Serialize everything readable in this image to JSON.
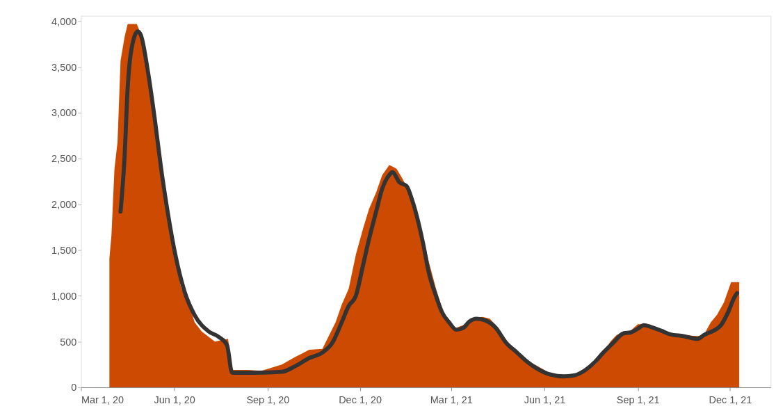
{
  "chart_data": {
    "type": "area",
    "xlim": [
      "2020-03-01",
      "2022-01-10"
    ],
    "ylim": [
      0,
      4060
    ],
    "xticks": [
      {
        "value": "2020-03-01",
        "label": "Mar 1, 20"
      },
      {
        "value": "2020-06-01",
        "label": "Jun 1, 20"
      },
      {
        "value": "2020-09-01",
        "label": "Sep 1, 20"
      },
      {
        "value": "2020-12-01",
        "label": "Dec 1, 20"
      },
      {
        "value": "2021-03-01",
        "label": "Mar 1, 21"
      },
      {
        "value": "2021-06-01",
        "label": "Jun 1, 21"
      },
      {
        "value": "2021-09-01",
        "label": "Sep 1, 21"
      },
      {
        "value": "2021-12-01",
        "label": "Dec 1, 21"
      }
    ],
    "yticks": [
      0,
      {
        "value": 500,
        "label": "500"
      },
      {
        "value": 1000,
        "label": "1,000"
      },
      {
        "value": 1500,
        "label": "1,500"
      },
      {
        "value": 2000,
        "label": "2,000"
      },
      {
        "value": 2500,
        "label": "2,500"
      },
      {
        "value": 3000,
        "label": "3,000"
      },
      {
        "value": 3500,
        "label": "3,500"
      },
      {
        "value": 4000,
        "label": "4,000"
      }
    ],
    "grid": false,
    "series": [
      {
        "color": "#cc4a02",
        "x": [
          "2020-03-29",
          "2020-03-31",
          "2020-04-03",
          "2020-04-06",
          "2020-04-09",
          "2020-04-13",
          "2020-04-16",
          "2020-04-25",
          "2020-04-29",
          "2020-05-06",
          "2020-05-13",
          "2020-05-19",
          "2020-05-26",
          "2020-06-02",
          "2020-06-08",
          "2020-06-15",
          "2020-06-21",
          "2020-06-28",
          "2020-07-11",
          "2020-07-24",
          "2020-07-28",
          "2020-08-13",
          "2020-08-26",
          "2020-09-15",
          "2020-09-28",
          "2020-10-12",
          "2020-10-25",
          "2020-11-07",
          "2020-11-13",
          "2020-11-20",
          "2020-11-27",
          "2020-12-04",
          "2020-12-10",
          "2020-12-17",
          "2020-12-23",
          "2020-12-30",
          "2021-01-06",
          "2021-01-12",
          "2021-01-19",
          "2021-01-25",
          "2021-02-01",
          "2021-02-07",
          "2021-02-14",
          "2021-02-20",
          "2021-02-27",
          "2021-03-06",
          "2021-03-13",
          "2021-03-19",
          "2021-03-26",
          "2021-04-01",
          "2021-04-08",
          "2021-04-14",
          "2021-04-21",
          "2021-04-28",
          "2021-05-11",
          "2021-05-24",
          "2021-06-07",
          "2021-06-20",
          "2021-07-03",
          "2021-07-16",
          "2021-07-23",
          "2021-07-29",
          "2021-08-05",
          "2021-08-11",
          "2021-08-18",
          "2021-08-25",
          "2021-09-01",
          "2021-09-07",
          "2021-09-14",
          "2021-09-20",
          "2021-10-03",
          "2021-10-16",
          "2021-10-30",
          "2021-11-05",
          "2021-11-12",
          "2021-11-18",
          "2021-11-25",
          "2021-12-02",
          "2021-12-10"
        ],
        "values": [
          1410,
          1660,
          2390,
          2680,
          3570,
          3830,
          3970,
          3970,
          3860,
          3350,
          2830,
          2320,
          1810,
          1370,
          1080,
          930,
          710,
          610,
          500,
          530,
          190,
          190,
          180,
          250,
          330,
          410,
          420,
          710,
          900,
          1080,
          1450,
          1730,
          1950,
          2130,
          2320,
          2430,
          2390,
          2280,
          2130,
          1950,
          1660,
          1370,
          1080,
          860,
          710,
          650,
          680,
          710,
          760,
          770,
          750,
          680,
          570,
          460,
          310,
          240,
          150,
          110,
          130,
          210,
          270,
          380,
          500,
          570,
          610,
          620,
          690,
          690,
          660,
          630,
          590,
          570,
          560,
          570,
          710,
          790,
          930,
          1150,
          1150
        ]
      },
      {
        "type": "line",
        "color": "#333333",
        "x": [
          "2020-04-09",
          "2020-04-13",
          "2020-04-16",
          "2020-04-20",
          "2020-04-26",
          "2020-04-29",
          "2020-05-06",
          "2020-05-13",
          "2020-05-19",
          "2020-05-26",
          "2020-06-02",
          "2020-06-11",
          "2020-06-21",
          "2020-07-05",
          "2020-07-15",
          "2020-07-23",
          "2020-07-28",
          "2020-08-20",
          "2020-09-15",
          "2020-09-28",
          "2020-10-12",
          "2020-10-25",
          "2020-11-04",
          "2020-11-13",
          "2020-11-20",
          "2020-11-27",
          "2020-12-04",
          "2020-12-10",
          "2020-12-17",
          "2020-12-23",
          "2020-12-30",
          "2021-01-02",
          "2021-01-09",
          "2021-01-16",
          "2021-01-22",
          "2021-02-01",
          "2021-02-07",
          "2021-02-14",
          "2021-02-20",
          "2021-02-27",
          "2021-03-06",
          "2021-03-13",
          "2021-03-19",
          "2021-03-26",
          "2021-04-04",
          "2021-04-14",
          "2021-04-24",
          "2021-05-05",
          "2021-05-15",
          "2021-05-24",
          "2021-06-07",
          "2021-06-20",
          "2021-06-30",
          "2021-07-10",
          "2021-07-20",
          "2021-07-29",
          "2021-08-08",
          "2021-08-18",
          "2021-08-25",
          "2021-09-01",
          "2021-09-07",
          "2021-09-14",
          "2021-09-24",
          "2021-10-03",
          "2021-10-16",
          "2021-10-30",
          "2021-11-05",
          "2021-11-22",
          "2021-11-29",
          "2021-12-06",
          "2021-12-08"
        ],
        "values": [
          1920,
          2530,
          3270,
          3710,
          3890,
          3850,
          3450,
          2910,
          2390,
          1880,
          1450,
          1050,
          790,
          610,
          550,
          460,
          160,
          160,
          170,
          230,
          320,
          380,
          490,
          710,
          890,
          1000,
          1330,
          1620,
          1920,
          2170,
          2320,
          2350,
          2240,
          2200,
          2030,
          1590,
          1250,
          1000,
          820,
          710,
          630,
          650,
          720,
          750,
          730,
          650,
          490,
          380,
          280,
          210,
          140,
          120,
          130,
          180,
          270,
          380,
          490,
          590,
          600,
          640,
          680,
          660,
          620,
          580,
          560,
          530,
          570,
          680,
          820,
          1000,
          1030
        ]
      }
    ]
  }
}
